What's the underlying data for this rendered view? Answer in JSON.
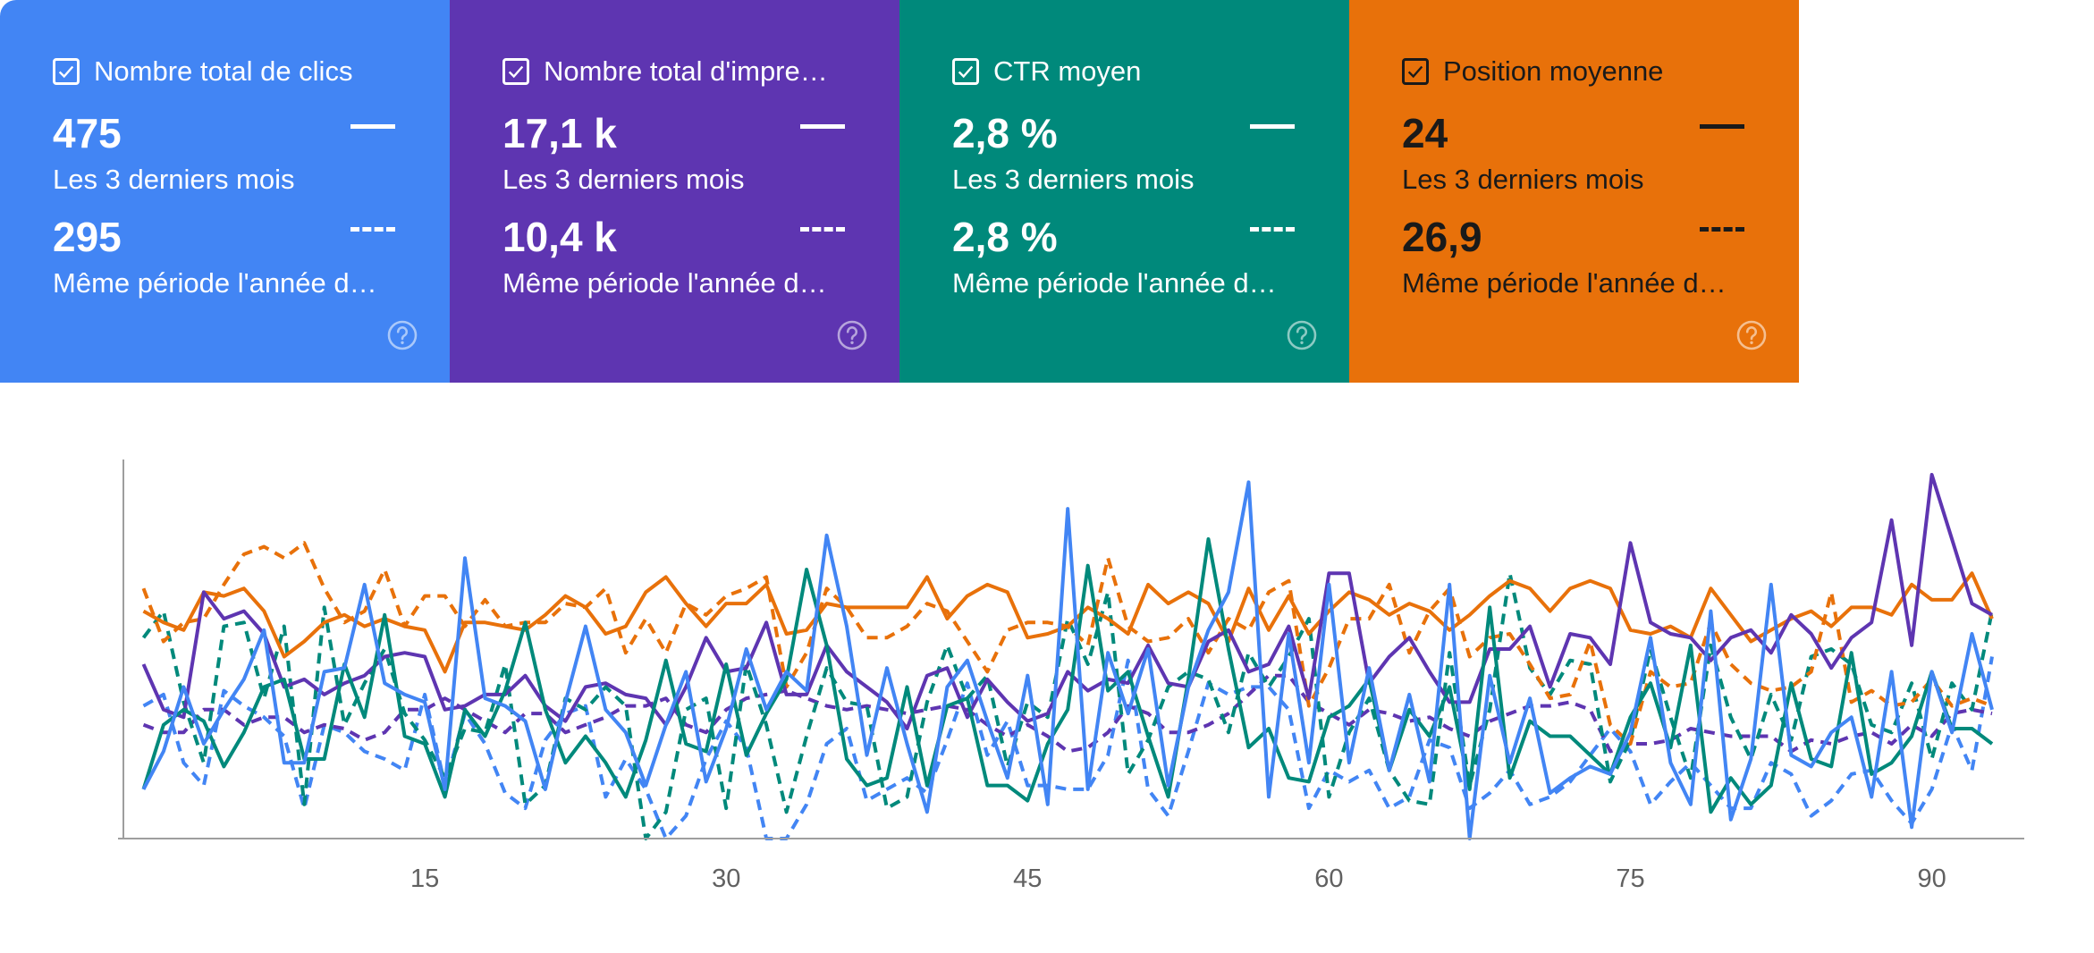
{
  "cards": [
    {
      "label": "Nombre total de clics",
      "value": "475",
      "period": "Les 3 derniers mois",
      "prev_value": "295",
      "prev_period": "Même période l'année d…",
      "bg": "#4285f4",
      "fg": "#ffffff",
      "help_icon": "help-circle-icon"
    },
    {
      "label": "Nombre total d'impre…",
      "value": "17,1 k",
      "period": "Les 3 derniers mois",
      "prev_value": "10,4 k",
      "prev_period": "Même période l'année d…",
      "bg": "#5e35b1",
      "fg": "#ffffff",
      "help_icon": "help-circle-icon"
    },
    {
      "label": "CTR moyen",
      "value": "2,8 %",
      "period": "Les 3 derniers mois",
      "prev_value": "2,8 %",
      "prev_period": "Même période l'année d…",
      "bg": "#00897b",
      "fg": "#ffffff",
      "help_icon": "help-circle-icon"
    },
    {
      "label": "Position moyenne",
      "value": "24",
      "period": "Les 3 derniers mois",
      "prev_value": "26,9",
      "prev_period": "Même période l'année d…",
      "bg": "#e8710a",
      "fg": "#1a1a1a",
      "help_icon": "help-circle-icon"
    }
  ],
  "chart_data": {
    "type": "line",
    "x_ticks": [
      "15",
      "30",
      "45",
      "60",
      "75",
      "90"
    ],
    "x_range": [
      0,
      93
    ],
    "y_range": [
      0,
      100
    ],
    "grid": false,
    "series": [
      {
        "metric": "clicks_current",
        "color": "#4285f4",
        "dashed": false,
        "values": [
          13,
          23,
          40,
          25,
          34,
          42,
          55,
          20,
          20,
          44,
          45,
          67,
          41,
          38,
          36,
          13,
          74,
          37,
          35,
          31,
          13,
          36,
          56,
          34,
          28,
          14,
          30,
          44,
          15,
          29,
          50,
          34,
          44,
          39,
          80,
          56,
          22,
          45,
          25,
          7,
          40,
          47,
          31,
          16,
          43,
          9,
          87,
          13,
          49,
          33,
          50,
          14,
          40,
          55,
          65,
          94,
          11,
          54,
          20,
          67,
          20,
          45,
          18,
          38,
          15,
          67,
          0,
          43,
          20,
          37,
          12,
          16,
          19,
          17,
          28,
          53,
          20,
          9,
          60,
          5,
          21,
          67,
          22,
          19,
          28,
          32,
          11,
          44,
          3,
          44,
          28,
          54,
          34
        ]
      },
      {
        "metric": "clicks_previous",
        "color": "#4285f4",
        "dashed": true,
        "values": [
          35,
          38,
          20,
          14,
          39,
          35,
          32,
          27,
          8,
          30,
          28,
          23,
          21,
          18,
          38,
          14,
          33,
          25,
          12,
          8,
          26,
          33,
          35,
          11,
          21,
          13,
          0,
          6,
          21,
          31,
          24,
          0,
          0,
          9,
          25,
          29,
          10,
          13,
          16,
          12,
          26,
          41,
          22,
          31,
          14,
          14,
          13,
          13,
          22,
          47,
          13,
          6,
          23,
          41,
          38,
          40,
          40,
          34,
          8,
          18,
          15,
          18,
          8,
          11,
          26,
          24,
          8,
          12,
          18,
          9,
          11,
          15,
          22,
          29,
          23,
          9,
          15,
          20,
          14,
          8,
          8,
          20,
          17,
          6,
          10,
          17,
          18,
          10,
          4,
          13,
          30,
          18,
          48
        ]
      },
      {
        "metric": "impressions_current",
        "color": "#5e35b1",
        "dashed": false,
        "values": [
          46,
          34,
          32,
          65,
          58,
          60,
          54,
          40,
          42,
          38,
          41,
          43,
          48,
          49,
          48,
          34,
          35,
          38,
          38,
          43,
          35,
          31,
          40,
          41,
          38,
          37,
          30,
          40,
          53,
          44,
          45,
          57,
          38,
          38,
          51,
          44,
          40,
          36,
          29,
          43,
          45,
          32,
          42,
          36,
          31,
          33,
          44,
          39,
          42,
          41,
          51,
          41,
          40,
          52,
          55,
          44,
          46,
          56,
          37,
          70,
          70,
          41,
          48,
          53,
          44,
          36,
          36,
          50,
          50,
          56,
          40,
          54,
          53,
          46,
          78,
          57,
          54,
          53,
          47,
          53,
          55,
          49,
          59,
          54,
          45,
          53,
          57,
          84,
          51,
          96,
          79,
          62,
          59
        ]
      },
      {
        "metric": "impressions_previous",
        "color": "#5e35b1",
        "dashed": true,
        "values": [
          30,
          28,
          28,
          34,
          34,
          30,
          32,
          32,
          28,
          30,
          29,
          26,
          28,
          34,
          34,
          37,
          34,
          31,
          28,
          33,
          33,
          28,
          30,
          32,
          35,
          35,
          37,
          30,
          28,
          34,
          37,
          38,
          39,
          37,
          35,
          34,
          35,
          34,
          33,
          34,
          35,
          34,
          30,
          27,
          30,
          27,
          23,
          24,
          28,
          35,
          33,
          28,
          28,
          30,
          33,
          38,
          43,
          43,
          36,
          33,
          30,
          34,
          33,
          31,
          32,
          29,
          27,
          31,
          33,
          35,
          35,
          36,
          34,
          23,
          25,
          25,
          26,
          29,
          28,
          27,
          27,
          27,
          23,
          26,
          25,
          27,
          28,
          25,
          30,
          27,
          33,
          34,
          33
        ]
      },
      {
        "metric": "ctr_current",
        "color": "#00897b",
        "dashed": false,
        "values": [
          13,
          30,
          34,
          31,
          19,
          28,
          40,
          42,
          21,
          21,
          46,
          32,
          59,
          27,
          25,
          11,
          34,
          27,
          39,
          57,
          34,
          20,
          27,
          20,
          11,
          26,
          47,
          25,
          23,
          46,
          22,
          33,
          42,
          71,
          51,
          21,
          14,
          16,
          40,
          14,
          35,
          37,
          14,
          14,
          10,
          25,
          34,
          72,
          39,
          44,
          27,
          11,
          42,
          79,
          50,
          24,
          29,
          16,
          15,
          32,
          35,
          42,
          18,
          34,
          27,
          40,
          13,
          61,
          16,
          31,
          27,
          27,
          22,
          17,
          32,
          41,
          24,
          51,
          7,
          16,
          9,
          14,
          41,
          21,
          19,
          49,
          17,
          20,
          27,
          44,
          29,
          29,
          25
        ]
      },
      {
        "metric": "ctr_previous",
        "color": "#00897b",
        "dashed": true,
        "values": [
          53,
          60,
          36,
          20,
          56,
          57,
          37,
          56,
          9,
          61,
          30,
          41,
          50,
          33,
          26,
          16,
          29,
          28,
          46,
          9,
          14,
          37,
          34,
          40,
          35,
          0,
          7,
          34,
          37,
          8,
          46,
          30,
          7,
          27,
          45,
          36,
          35,
          8,
          11,
          36,
          51,
          37,
          43,
          19,
          36,
          32,
          58,
          46,
          65,
          17,
          26,
          40,
          44,
          42,
          28,
          49,
          40,
          48,
          58,
          11,
          28,
          37,
          18,
          10,
          9,
          49,
          14,
          34,
          70,
          45,
          38,
          47,
          46,
          15,
          26,
          50,
          32,
          16,
          51,
          32,
          21,
          38,
          26,
          48,
          50,
          46,
          30,
          28,
          41,
          21,
          41,
          34,
          60
        ]
      },
      {
        "metric": "position_current",
        "color": "#e8710a",
        "dashed": false,
        "values": [
          60,
          57,
          55,
          65,
          64,
          66,
          60,
          48,
          52,
          57,
          59,
          56,
          58,
          56,
          55,
          44,
          57,
          57,
          56,
          55,
          59,
          64,
          61,
          54,
          56,
          65,
          69,
          62,
          56,
          62,
          62,
          67,
          54,
          55,
          62,
          61,
          61,
          61,
          61,
          69,
          58,
          64,
          67,
          65,
          53,
          54,
          56,
          61,
          58,
          54,
          67,
          62,
          65,
          62,
          52,
          66,
          55,
          64,
          54,
          60,
          65,
          63,
          59,
          62,
          60,
          55,
          59,
          64,
          68,
          66,
          60,
          66,
          68,
          66,
          55,
          54,
          56,
          53,
          66,
          59,
          52,
          55,
          58,
          60,
          56,
          61,
          61,
          59,
          67,
          63,
          63,
          70,
          58
        ]
      },
      {
        "metric": "position_previous",
        "color": "#e8710a",
        "dashed": true,
        "values": [
          66,
          52,
          57,
          58,
          67,
          75,
          77,
          74,
          78,
          66,
          57,
          60,
          71,
          56,
          64,
          64,
          56,
          63,
          56,
          57,
          57,
          62,
          61,
          66,
          49,
          58,
          49,
          62,
          59,
          64,
          66,
          69,
          40,
          49,
          66,
          61,
          53,
          53,
          56,
          62,
          60,
          52,
          44,
          55,
          57,
          57,
          56,
          51,
          74,
          56,
          52,
          53,
          58,
          49,
          58,
          55,
          65,
          68,
          35,
          45,
          58,
          58,
          67,
          49,
          60,
          66,
          48,
          53,
          54,
          46,
          37,
          38,
          52,
          30,
          25,
          44,
          40,
          41,
          57,
          46,
          41,
          39,
          40,
          44,
          65,
          36,
          39,
          35,
          36,
          42,
          35,
          37,
          35
        ]
      }
    ]
  }
}
